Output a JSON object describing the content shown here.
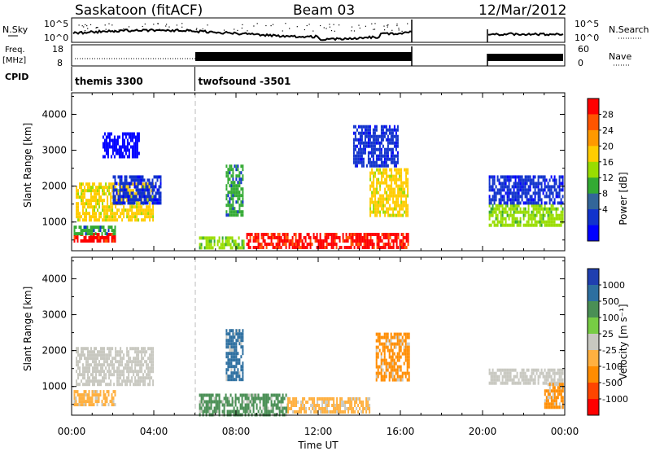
{
  "header": {
    "station": "Saskatoon (fitACF)",
    "beam": "Beam 03",
    "date": "12/Mar/2012"
  },
  "strip_labels": {
    "nsky": "N.Sky",
    "nsky_top": "10^5",
    "nsky_bottom": "10^0",
    "freq_line1": "Freq.",
    "freq_line2": "[MHz]",
    "freq_top": "18",
    "freq_bottom": "8",
    "cpid": "CPID",
    "nsearch": "N.Search",
    "nsearch_top": "10^5",
    "nsearch_bottom": "10^0",
    "nave": "Nave",
    "nave_top": "60",
    "nave_bottom": "0"
  },
  "cpid_modes": [
    {
      "label": "themis 3300",
      "start_hour": 0
    },
    {
      "label": "twofsound -3501",
      "start_hour": 6
    }
  ],
  "axes": {
    "ylabel": "Slant Range [km]",
    "xlabel": "Time UT",
    "y_ticks": [
      "4000",
      "3000",
      "2000",
      "1000"
    ],
    "x_ticks": [
      "00:00",
      "04:00",
      "08:00",
      "12:00",
      "16:00",
      "20:00",
      "00:00"
    ],
    "ylim": [
      200,
      4600
    ],
    "xlim_hours": [
      0,
      24
    ]
  },
  "colorbars": {
    "power": {
      "label": "Power [dB]",
      "ticks": [
        "28",
        "24",
        "20",
        "16",
        "12",
        "8",
        "4"
      ],
      "colors": [
        "#ff0000",
        "#ff5500",
        "#ff9900",
        "#ffcc00",
        "#99dd00",
        "#33aa33",
        "#336699",
        "#1133cc",
        "#0000ff"
      ]
    },
    "velocity": {
      "label": "Velocity [m s⁻¹]",
      "ticks": [
        "1000",
        "500",
        "100",
        "25",
        "-25",
        "-100",
        "-500",
        "-1000"
      ],
      "colors": [
        "#1f3fb0",
        "#2d6fa0",
        "#4a8f55",
        "#77cc44",
        "#c8c8c0",
        "#ffb040",
        "#ff8c00",
        "#ff4500",
        "#ff0000"
      ]
    }
  },
  "chart_data": [
    {
      "type": "heatmap",
      "name": "Power",
      "x_unit": "hours UT",
      "y_unit": "km",
      "regions": [
        {
          "x": [
            0.1,
            2.1
          ],
          "y": [
            450,
            700
          ],
          "level": 28
        },
        {
          "x": [
            0.1,
            2.1
          ],
          "y": [
            700,
            900
          ],
          "level": 12
        },
        {
          "x": [
            0.2,
            4.0
          ],
          "y": [
            1100,
            2100
          ],
          "level": 20
        },
        {
          "x": [
            2.0,
            4.3
          ],
          "y": [
            1500,
            2300
          ],
          "level": 8
        },
        {
          "x": [
            1.5,
            3.3
          ],
          "y": [
            2800,
            3500
          ],
          "level": 4
        },
        {
          "x": [
            6.2,
            8.4
          ],
          "y": [
            250,
            600
          ],
          "level": 16
        },
        {
          "x": [
            8.5,
            16.4
          ],
          "y": [
            250,
            700
          ],
          "level": 28
        },
        {
          "x": [
            7.5,
            8.3
          ],
          "y": [
            1200,
            2600
          ],
          "level": 12
        },
        {
          "x": [
            14.5,
            16.4
          ],
          "y": [
            1200,
            2500
          ],
          "level": 20
        },
        {
          "x": [
            13.7,
            15.9
          ],
          "y": [
            2600,
            3700
          ],
          "level": 8
        },
        {
          "x": [
            20.3,
            23.9
          ],
          "y": [
            900,
            1500
          ],
          "level": 16
        },
        {
          "x": [
            20.3,
            23.9
          ],
          "y": [
            1500,
            2300
          ],
          "level": 8
        }
      ]
    },
    {
      "type": "heatmap",
      "name": "Velocity",
      "x_unit": "hours UT",
      "y_unit": "km",
      "regions": [
        {
          "x": [
            0.1,
            2.1
          ],
          "y": [
            450,
            900
          ],
          "level": -100
        },
        {
          "x": [
            0.2,
            4.0
          ],
          "y": [
            1100,
            2100
          ],
          "level": 0
        },
        {
          "x": [
            7.5,
            8.3
          ],
          "y": [
            1200,
            2600
          ],
          "level": 500
        },
        {
          "x": [
            6.2,
            10.5
          ],
          "y": [
            250,
            800
          ],
          "level": 100
        },
        {
          "x": [
            10.5,
            14.5
          ],
          "y": [
            250,
            700
          ],
          "level": -100
        },
        {
          "x": [
            14.8,
            16.4
          ],
          "y": [
            1200,
            2500
          ],
          "level": -500
        },
        {
          "x": [
            20.3,
            23.9
          ],
          "y": [
            1100,
            1500
          ],
          "level": 0
        },
        {
          "x": [
            23.0,
            23.9
          ],
          "y": [
            400,
            1100
          ],
          "level": -500
        }
      ]
    }
  ]
}
